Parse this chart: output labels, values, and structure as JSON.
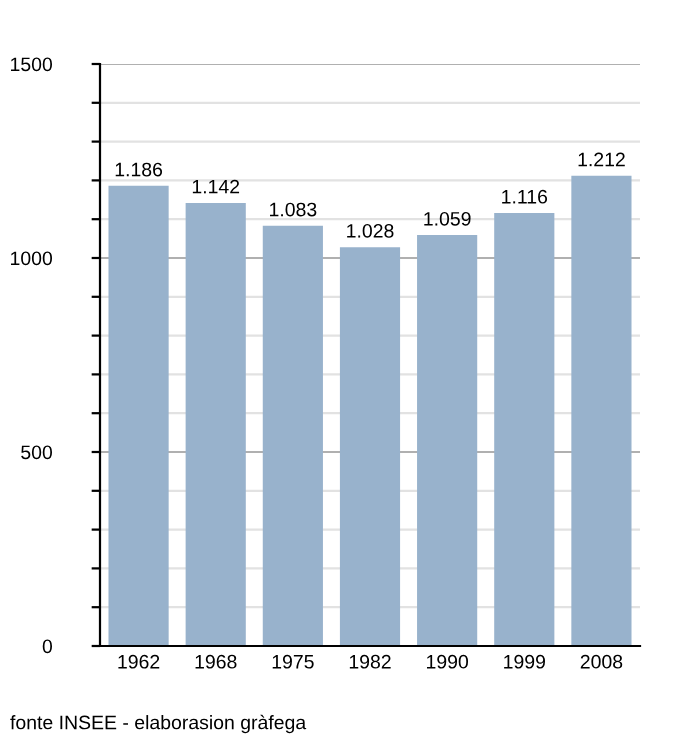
{
  "chart_data": {
    "type": "bar",
    "categories": [
      "1962",
      "1968",
      "1975",
      "1982",
      "1990",
      "1999",
      "2008"
    ],
    "values": [
      1186,
      1142,
      1083,
      1028,
      1059,
      1116,
      1212
    ],
    "value_labels": [
      "1.186",
      "1.142",
      "1.083",
      "1.028",
      "1.059",
      "1.116",
      "1.212"
    ],
    "color": "#98b2cc",
    "ylim": [
      0,
      1500
    ],
    "yticks": [
      0,
      {
        "value": 100,
        "label": null
      },
      {
        "value": 200,
        "label": null
      },
      {
        "value": 300,
        "label": null
      },
      {
        "value": 400,
        "label": null
      },
      500,
      {
        "value": 600,
        "label": null
      },
      {
        "value": 700,
        "label": null
      },
      {
        "value": 800,
        "label": null
      },
      {
        "value": 900,
        "label": null
      },
      1000,
      {
        "value": 1100,
        "label": null
      },
      {
        "value": 1200,
        "label": null
      },
      {
        "value": 1300,
        "label": null
      },
      {
        "value": 1400,
        "label": null
      },
      1500
    ],
    "grid": "y",
    "annotations": [
      "fonte INSEE - elaborasion gràfega"
    ]
  }
}
